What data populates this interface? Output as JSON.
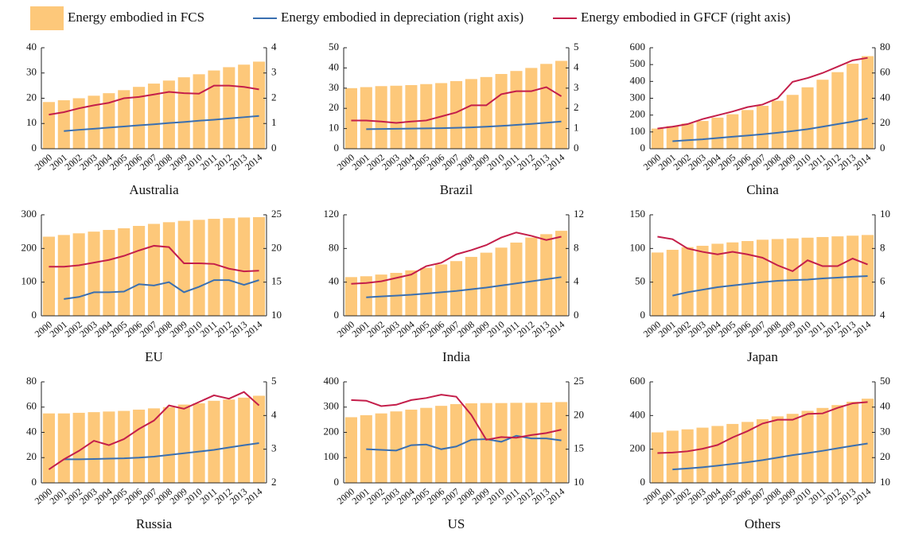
{
  "chart_data": [
    {
      "type": "bar-line",
      "title": "Australia",
      "categories": [
        "2000",
        "2001",
        "2002",
        "2003",
        "2004",
        "2005",
        "2006",
        "2007",
        "2008",
        "2009",
        "2010",
        "2011",
        "2012",
        "2013",
        "2014"
      ],
      "ylim": [
        0,
        40
      ],
      "yticks": [
        0,
        10,
        20,
        30,
        40
      ],
      "y2lim": [
        0,
        4
      ],
      "y2ticks": [
        0,
        1,
        2,
        3,
        4
      ],
      "series": [
        {
          "name": "Energy embodied in FCS",
          "color": "#fdc87a",
          "values": [
            18.5,
            19.2,
            20,
            21,
            22,
            23.2,
            24.5,
            25.8,
            27,
            28.3,
            29.5,
            31,
            32.3,
            33.3,
            34.5
          ]
        },
        {
          "name": "Energy embodied in depreciation (right axis)",
          "color": "#3a6fb0",
          "axis": "y2",
          "values": [
            null,
            0.7,
            0.75,
            0.79,
            0.84,
            0.88,
            0.93,
            0.97,
            1.02,
            1.06,
            1.11,
            1.15,
            1.2,
            1.25,
            1.3
          ]
        },
        {
          "name": "Energy embodied in GFCF (right axis)",
          "color": "#c41e4a",
          "axis": "y2",
          "values": [
            1.35,
            1.45,
            1.6,
            1.72,
            1.82,
            2.0,
            2.05,
            2.15,
            2.25,
            2.2,
            2.18,
            2.5,
            2.5,
            2.45,
            2.35
          ]
        }
      ]
    },
    {
      "type": "bar-line",
      "title": "Brazil",
      "categories": [
        "2000",
        "2001",
        "2002",
        "2003",
        "2004",
        "2005",
        "2006",
        "2007",
        "2008",
        "2009",
        "2010",
        "2011",
        "2012",
        "2013",
        "2014"
      ],
      "ylim": [
        0,
        50
      ],
      "yticks": [
        0,
        10,
        20,
        30,
        40,
        50
      ],
      "y2lim": [
        0,
        5
      ],
      "y2ticks": [
        0,
        1,
        2,
        3,
        4,
        5
      ],
      "series": [
        {
          "color": "#fdc87a",
          "values": [
            30,
            30.5,
            31,
            31.2,
            31.5,
            32,
            32.5,
            33.5,
            34.5,
            35.5,
            37,
            38.5,
            40,
            42,
            43.5
          ]
        },
        {
          "color": "#3a6fb0",
          "axis": "y2",
          "values": [
            null,
            0.97,
            0.98,
            0.99,
            1.0,
            1.01,
            1.02,
            1.04,
            1.06,
            1.09,
            1.13,
            1.18,
            1.23,
            1.29,
            1.35
          ]
        },
        {
          "color": "#c41e4a",
          "axis": "y2",
          "values": [
            1.4,
            1.4,
            1.35,
            1.28,
            1.35,
            1.4,
            1.6,
            1.8,
            2.15,
            2.15,
            2.7,
            2.85,
            2.85,
            3.05,
            2.6
          ]
        }
      ]
    },
    {
      "type": "bar-line",
      "title": "China",
      "categories": [
        "2000",
        "2001",
        "2002",
        "2003",
        "2004",
        "2005",
        "2006",
        "2007",
        "2008",
        "2009",
        "2010",
        "2011",
        "2012",
        "2013",
        "2014"
      ],
      "ylim": [
        0,
        600
      ],
      "yticks": [
        0,
        100,
        200,
        300,
        400,
        500,
        600
      ],
      "y2lim": [
        0,
        80
      ],
      "y2ticks": [
        0,
        20,
        40,
        60,
        80
      ],
      "series": [
        {
          "color": "#fdc87a",
          "values": [
            120,
            135,
            150,
            165,
            185,
            205,
            230,
            255,
            285,
            320,
            365,
            410,
            455,
            505,
            550
          ]
        },
        {
          "color": "#3a6fb0",
          "axis": "y2",
          "values": [
            null,
            6,
            6.8,
            7.5,
            8.5,
            9.5,
            10.5,
            11.5,
            12.7,
            14,
            15.5,
            17.5,
            19.5,
            21.5,
            24
          ]
        },
        {
          "color": "#c41e4a",
          "axis": "y2",
          "values": [
            16,
            17.5,
            19.5,
            23.5,
            26.5,
            29.5,
            33,
            35,
            40,
            53,
            56,
            60,
            65,
            70,
            72
          ]
        }
      ]
    },
    {
      "type": "bar-line",
      "title": "EU",
      "categories": [
        "2000",
        "2001",
        "2002",
        "2003",
        "2004",
        "2005",
        "2006",
        "2007",
        "2008",
        "2009",
        "2010",
        "2011",
        "2012",
        "2013",
        "2014"
      ],
      "ylim": [
        0,
        300
      ],
      "yticks": [
        0,
        100,
        200,
        300
      ],
      "y2lim": [
        10,
        25
      ],
      "y2ticks": [
        10,
        15,
        20,
        25
      ],
      "series": [
        {
          "color": "#fdc87a",
          "values": [
            235,
            240,
            245,
            250,
            255,
            260,
            267,
            273,
            278,
            282,
            285,
            288,
            290,
            292,
            293
          ]
        },
        {
          "color": "#3a6fb0",
          "axis": "y2",
          "values": [
            null,
            12.5,
            12.8,
            13.5,
            13.5,
            13.6,
            14.7,
            14.5,
            15.0,
            13.5,
            14.3,
            15.3,
            15.3,
            14.6,
            15.3
          ]
        },
        {
          "color": "#c41e4a",
          "axis": "y2",
          "values": [
            17.3,
            17.3,
            17.5,
            17.9,
            18.3,
            18.9,
            19.7,
            20.4,
            20.2,
            17.8,
            17.8,
            17.7,
            17.0,
            16.6,
            16.7
          ]
        }
      ]
    },
    {
      "type": "bar-line",
      "title": "India",
      "categories": [
        "2000",
        "2001",
        "2002",
        "2003",
        "2004",
        "2005",
        "2006",
        "2007",
        "2008",
        "2009",
        "2010",
        "2011",
        "2012",
        "2013",
        "2014"
      ],
      "ylim": [
        0,
        120
      ],
      "yticks": [
        0,
        40,
        80,
        120
      ],
      "y2lim": [
        0,
        12
      ],
      "y2ticks": [
        0,
        4,
        8,
        12
      ],
      "series": [
        {
          "color": "#fdc87a",
          "values": [
            46,
            47,
            49,
            51,
            54,
            57,
            61,
            65,
            70,
            75,
            81,
            87,
            93,
            97,
            101
          ]
        },
        {
          "color": "#3a6fb0",
          "axis": "y2",
          "values": [
            null,
            2.2,
            2.3,
            2.4,
            2.5,
            2.65,
            2.8,
            2.95,
            3.15,
            3.35,
            3.6,
            3.85,
            4.1,
            4.35,
            4.6
          ]
        },
        {
          "color": "#c41e4a",
          "axis": "y2",
          "values": [
            3.8,
            3.9,
            4.1,
            4.5,
            4.9,
            5.9,
            6.3,
            7.3,
            7.8,
            8.4,
            9.3,
            9.9,
            9.5,
            9.0,
            9.4
          ]
        }
      ]
    },
    {
      "type": "bar-line",
      "title": "Japan",
      "categories": [
        "2000",
        "2001",
        "2002",
        "2003",
        "2004",
        "2005",
        "2006",
        "2007",
        "2008",
        "2009",
        "2010",
        "2011",
        "2012",
        "2013",
        "2014"
      ],
      "ylim": [
        0,
        150
      ],
      "yticks": [
        0,
        50,
        100,
        150
      ],
      "y2lim": [
        4,
        10
      ],
      "y2ticks": [
        4,
        6,
        8,
        10
      ],
      "series": [
        {
          "color": "#fdc87a",
          "values": [
            94,
            98,
            102,
            104,
            107,
            109,
            111,
            113,
            114,
            115,
            116,
            117,
            118,
            119,
            120
          ]
        },
        {
          "color": "#3a6fb0",
          "axis": "y2",
          "values": [
            null,
            5.2,
            5.4,
            5.55,
            5.7,
            5.8,
            5.9,
            6.0,
            6.08,
            6.12,
            6.15,
            6.22,
            6.27,
            6.32,
            6.36
          ]
        },
        {
          "color": "#c41e4a",
          "axis": "y2",
          "values": [
            8.7,
            8.55,
            8.0,
            7.8,
            7.65,
            7.8,
            7.65,
            7.45,
            7.0,
            6.65,
            7.3,
            6.95,
            6.95,
            7.4,
            7.05
          ]
        }
      ]
    },
    {
      "type": "bar-line",
      "title": "Russia",
      "categories": [
        "2000",
        "2001",
        "2002",
        "2003",
        "2004",
        "2005",
        "2006",
        "2007",
        "2008",
        "2009",
        "2010",
        "2011",
        "2012",
        "2013",
        "2014"
      ],
      "ylim": [
        0,
        80
      ],
      "yticks": [
        0,
        20,
        40,
        60,
        80
      ],
      "y2lim": [
        2,
        5
      ],
      "y2ticks": [
        2,
        3,
        4,
        5
      ],
      "series": [
        {
          "color": "#fdc87a",
          "values": [
            55,
            55,
            55.5,
            56,
            56.5,
            57,
            58,
            59,
            60,
            62,
            63,
            65,
            66,
            67.5,
            69
          ]
        },
        {
          "color": "#3a6fb0",
          "axis": "y2",
          "values": [
            null,
            2.7,
            2.7,
            2.71,
            2.72,
            2.73,
            2.75,
            2.78,
            2.83,
            2.88,
            2.93,
            2.98,
            3.05,
            3.12,
            3.18
          ]
        },
        {
          "color": "#c41e4a",
          "axis": "y2",
          "values": [
            2.4,
            2.7,
            2.95,
            3.25,
            3.12,
            3.3,
            3.6,
            3.85,
            4.3,
            4.2,
            4.4,
            4.6,
            4.5,
            4.7,
            4.3
          ]
        }
      ]
    },
    {
      "type": "bar-line",
      "title": "US",
      "categories": [
        "2000",
        "2001",
        "2002",
        "2003",
        "2004",
        "2005",
        "2006",
        "2007",
        "2008",
        "2009",
        "2010",
        "2011",
        "2012",
        "2013",
        "2014"
      ],
      "ylim": [
        0,
        400
      ],
      "yticks": [
        0,
        100,
        200,
        300,
        400
      ],
      "y2lim": [
        10,
        25
      ],
      "y2ticks": [
        10,
        15,
        20,
        25
      ],
      "series": [
        {
          "color": "#fdc87a",
          "values": [
            260,
            268,
            275,
            283,
            290,
            297,
            305,
            312,
            315,
            316,
            316,
            317,
            317,
            318,
            320
          ]
        },
        {
          "color": "#3a6fb0",
          "axis": "y2",
          "values": [
            null,
            15.0,
            14.9,
            14.8,
            15.6,
            15.7,
            15.0,
            15.4,
            16.4,
            16.5,
            16.1,
            17.0,
            16.6,
            16.6,
            16.3
          ]
        },
        {
          "color": "#c41e4a",
          "axis": "y2",
          "values": [
            22.3,
            22.2,
            21.4,
            21.6,
            22.3,
            22.6,
            23.1,
            22.8,
            20.1,
            16.4,
            16.8,
            16.7,
            17.1,
            17.4,
            17.9
          ]
        }
      ]
    },
    {
      "type": "bar-line",
      "title": "Others",
      "categories": [
        "2000",
        "2001",
        "2002",
        "2003",
        "2004",
        "2005",
        "2006",
        "2007",
        "2008",
        "2009",
        "2010",
        "2011",
        "2012",
        "2013",
        "2014"
      ],
      "ylim": [
        0,
        600
      ],
      "yticks": [
        0,
        200,
        400,
        600
      ],
      "y2lim": [
        10,
        50
      ],
      "y2ticks": [
        10,
        20,
        30,
        40,
        50
      ],
      "series": [
        {
          "color": "#fdc87a",
          "values": [
            300,
            310,
            318,
            328,
            338,
            350,
            362,
            378,
            395,
            410,
            428,
            445,
            462,
            482,
            500
          ]
        },
        {
          "color": "#3a6fb0",
          "axis": "y2",
          "values": [
            null,
            15.3,
            15.7,
            16.2,
            16.8,
            17.5,
            18.2,
            19.0,
            20.0,
            21.0,
            21.8,
            22.7,
            23.7,
            24.7,
            25.6
          ]
        },
        {
          "color": "#c41e4a",
          "axis": "y2",
          "values": [
            21.8,
            22.0,
            22.5,
            23.5,
            25.0,
            28.0,
            30.5,
            33.5,
            35.0,
            35.0,
            37.3,
            37.5,
            39.7,
            41.5,
            42
          ]
        }
      ]
    }
  ]
}
